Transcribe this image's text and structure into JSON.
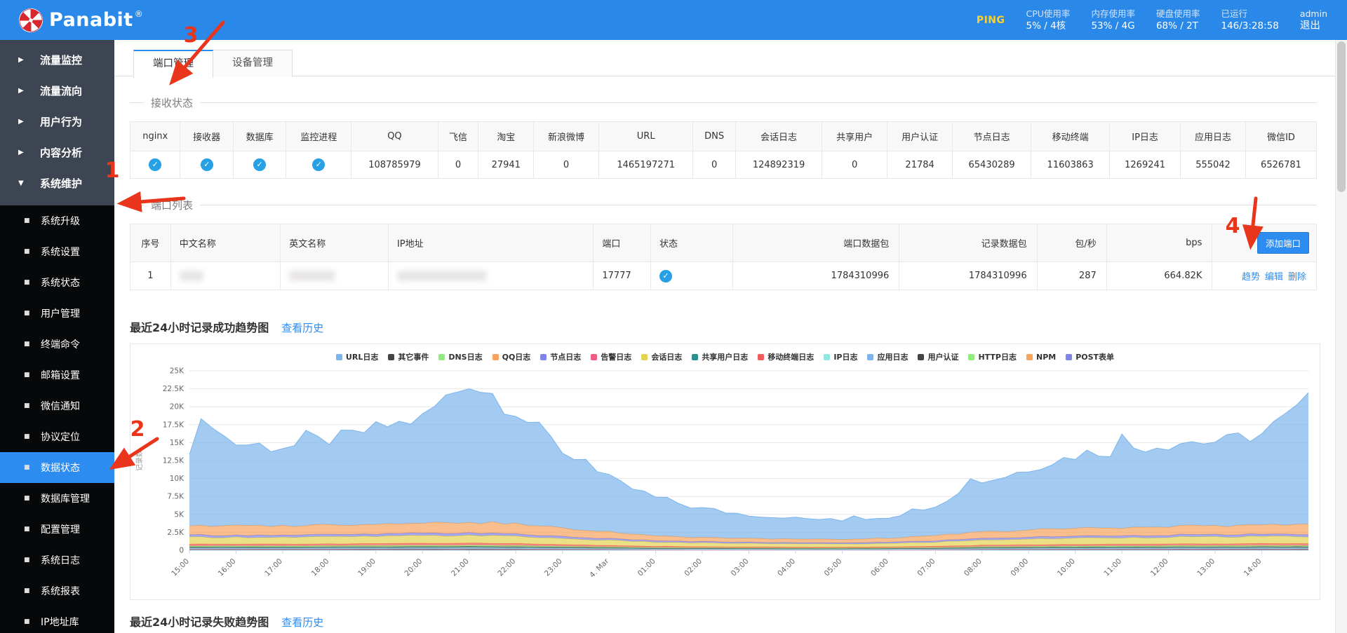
{
  "topbar": {
    "brand": "Panabit",
    "brand_reg": "®",
    "ping": "PING",
    "stats": [
      {
        "key": "cpu",
        "label": "CPU使用率",
        "value": "5% / 4核"
      },
      {
        "key": "memory",
        "label": "内存使用率",
        "value": "53% / 4G"
      },
      {
        "key": "disk",
        "label": "硬盘使用率",
        "value": "68% / 2T"
      },
      {
        "key": "uptime",
        "label": "已运行",
        "value": "146/3:28:58"
      }
    ],
    "user": "admin",
    "logout": "退出"
  },
  "sidebar": {
    "items": [
      {
        "key": "traffic-monitor",
        "label": "流量监控",
        "expanded": false
      },
      {
        "key": "traffic-flow",
        "label": "流量流向",
        "expanded": false
      },
      {
        "key": "user-behavior",
        "label": "用户行为",
        "expanded": false
      },
      {
        "key": "content-analysis",
        "label": "内容分析",
        "expanded": false
      },
      {
        "key": "system-maintenance",
        "label": "系统维护",
        "expanded": true
      }
    ],
    "submenu": [
      {
        "key": "system-upgrade",
        "label": "系统升级",
        "active": false
      },
      {
        "key": "system-settings",
        "label": "系统设置",
        "active": false
      },
      {
        "key": "system-status",
        "label": "系统状态",
        "active": false
      },
      {
        "key": "user-management",
        "label": "用户管理",
        "active": false
      },
      {
        "key": "terminal-command",
        "label": "终端命令",
        "active": false
      },
      {
        "key": "mail-settings",
        "label": "邮箱设置",
        "active": false
      },
      {
        "key": "wechat-notify",
        "label": "微信通知",
        "active": false
      },
      {
        "key": "protocol-location",
        "label": "协议定位",
        "active": false
      },
      {
        "key": "data-status",
        "label": "数据状态",
        "active": true
      },
      {
        "key": "database-management",
        "label": "数据库管理",
        "active": false
      },
      {
        "key": "config-management",
        "label": "配置管理",
        "active": false
      },
      {
        "key": "system-log",
        "label": "系统日志",
        "active": false
      },
      {
        "key": "system-report",
        "label": "系统报表",
        "active": false
      },
      {
        "key": "ip-library",
        "label": "IP地址库",
        "active": false
      }
    ]
  },
  "tabs": [
    {
      "key": "port-management",
      "label": "端口管理",
      "active": true
    },
    {
      "key": "device-management",
      "label": "设备管理",
      "active": false
    }
  ],
  "receive_status": {
    "section_title": "接收状态",
    "columns": [
      "nginx",
      "接收器",
      "数据库",
      "监控进程",
      "QQ",
      "飞信",
      "淘宝",
      "新浪微博",
      "URL",
      "DNS",
      "会话日志",
      "共享用户",
      "用户认证",
      "节点日志",
      "移动终端",
      "IP日志",
      "应用日志",
      "微信ID"
    ],
    "values": [
      "check",
      "check",
      "check",
      "check",
      "108785979",
      "0",
      "27941",
      "0",
      "1465197271",
      "0",
      "124892319",
      "0",
      "21784",
      "65430289",
      "11603863",
      "1269241",
      "555042",
      "6526781"
    ]
  },
  "port_list": {
    "section_title": "端口列表",
    "columns": [
      "序号",
      "中文名称",
      "英文名称",
      "IP地址",
      "端口",
      "状态",
      "端口数据包",
      "记录数据包",
      "包/秒",
      "bps"
    ],
    "add_button": "添加端口",
    "row": {
      "index": "1",
      "chinese_name_redacted": true,
      "english_name_redacted": true,
      "ip_redacted": true,
      "port": "17777",
      "status": "check",
      "port_packets": "1784310996",
      "recorded_packets": "1784310996",
      "pps": "287",
      "bps": "664.82K",
      "actions": [
        "趋势",
        "编辑",
        "删除"
      ]
    }
  },
  "chart_section": {
    "title": "最近24小时记录成功趋势图",
    "link": "查看历史"
  },
  "chart2_section": {
    "title": "最近24小时记录失败趋势图",
    "link": "查看历史"
  },
  "chart_data": {
    "type": "area",
    "stacked": true,
    "title": "最近24小时记录成功趋势图",
    "ylabel": "记录数",
    "ylim": [
      0,
      25000
    ],
    "y_ticks": [
      "0",
      "2.5K",
      "5K",
      "7.5K",
      "10K",
      "12.5K",
      "15K",
      "17.5K",
      "20K",
      "22.5K",
      "25K"
    ],
    "legend_position": "top",
    "grid": true,
    "x_labels": [
      "15:00",
      "16:00",
      "17:00",
      "18:00",
      "19:00",
      "20:00",
      "21:00",
      "22:00",
      "23:00",
      "4. Mar",
      "01:00",
      "02:00",
      "03:00",
      "04:00",
      "05:00",
      "06:00",
      "07:00",
      "08:00",
      "09:00",
      "10:00",
      "11:00",
      "12:00",
      "13:00",
      "14:00"
    ],
    "stack_order": [
      "POST表单",
      "NPM",
      "HTTP日志",
      "用户认证",
      "共享用户日志",
      "告警日志",
      "应用日志",
      "IP日志",
      "其它事件",
      "DNS日志",
      "移动终端日志",
      "会话日志",
      "节点日志",
      "QQ日志",
      "URL日志"
    ],
    "series": [
      {
        "name": "URL日志",
        "color": "#7cb5ec",
        "values": [
          10900,
          11400,
          11000,
          11800,
          13300,
          14600,
          19900,
          15800,
          10800,
          7300,
          5300,
          4000,
          3300,
          2900,
          2600,
          3000,
          4300,
          6900,
          8600,
          10200,
          11000,
          11600,
          11700,
          12600,
          17000
        ]
      },
      {
        "name": "其它事件",
        "color": "#434348",
        "values": [
          120,
          120,
          118,
          122,
          126,
          132,
          136,
          128,
          112,
          92,
          76,
          68,
          64,
          60,
          60,
          64,
          76,
          96,
          106,
          115,
          120,
          122,
          124,
          126,
          130
        ]
      },
      {
        "name": "DNS日志",
        "color": "#90ed7d",
        "values": [
          150,
          150,
          148,
          152,
          158,
          165,
          170,
          160,
          140,
          115,
          95,
          85,
          80,
          75,
          75,
          80,
          95,
          120,
          132,
          144,
          150,
          152,
          155,
          158,
          162
        ]
      },
      {
        "name": "QQ日志",
        "color": "#f7a35c",
        "values": [
          1300,
          1350,
          1300,
          1350,
          1400,
          1450,
          1500,
          1400,
          1200,
          900,
          700,
          600,
          550,
          500,
          500,
          550,
          700,
          900,
          1000,
          1100,
          1150,
          1200,
          1250,
          1300,
          1350
        ]
      },
      {
        "name": "节点日志",
        "color": "#8085e9",
        "values": [
          300,
          300,
          300,
          305,
          320,
          330,
          340,
          320,
          280,
          230,
          200,
          180,
          170,
          160,
          160,
          170,
          200,
          240,
          260,
          280,
          290,
          300,
          300,
          310,
          320
        ]
      },
      {
        "name": "告警日志",
        "color": "#f15c80",
        "values": [
          55,
          55,
          54,
          56,
          58,
          60,
          62,
          59,
          51,
          42,
          35,
          31,
          29,
          28,
          28,
          29,
          35,
          44,
          48,
          53,
          55,
          56,
          57,
          58,
          59
        ]
      },
      {
        "name": "会话日志",
        "color": "#e4d354",
        "values": [
          950,
          960,
          950,
          980,
          1000,
          1050,
          1100,
          1000,
          850,
          700,
          600,
          520,
          480,
          450,
          450,
          480,
          580,
          720,
          800,
          880,
          920,
          950,
          960,
          980,
          1000
        ]
      },
      {
        "name": "共享用户日志",
        "color": "#2b908f",
        "values": [
          40,
          40,
          39,
          41,
          42,
          44,
          45,
          43,
          37,
          31,
          25,
          23,
          21,
          20,
          20,
          21,
          25,
          32,
          35,
          38,
          40,
          41,
          41,
          42,
          43
        ]
      },
      {
        "name": "移动终端日志",
        "color": "#f45b5b",
        "values": [
          260,
          260,
          255,
          260,
          270,
          280,
          290,
          270,
          230,
          190,
          160,
          140,
          130,
          120,
          120,
          130,
          160,
          200,
          220,
          240,
          250,
          255,
          260,
          265,
          270
        ]
      },
      {
        "name": "IP日志",
        "color": "#91e8e1",
        "values": [
          90,
          90,
          88,
          92,
          95,
          99,
          102,
          96,
          84,
          69,
          57,
          51,
          48,
          45,
          45,
          48,
          57,
          72,
          79,
          86,
          90,
          92,
          93,
          95,
          97
        ]
      },
      {
        "name": "应用日志",
        "color": "#7cb5ec",
        "values": [
          70,
          70,
          69,
          71,
          74,
          77,
          79,
          75,
          65,
          54,
          44,
          40,
          37,
          35,
          35,
          37,
          44,
          56,
          62,
          67,
          70,
          71,
          72,
          74,
          76
        ]
      },
      {
        "name": "用户认证",
        "color": "#434348",
        "values": [
          30,
          30,
          30,
          31,
          32,
          33,
          34,
          32,
          28,
          23,
          19,
          17,
          16,
          15,
          15,
          16,
          19,
          24,
          26,
          29,
          30,
          31,
          31,
          32,
          32
        ]
      },
      {
        "name": "HTTP日志",
        "color": "#90ed7d",
        "values": [
          25,
          25,
          25,
          26,
          27,
          28,
          28,
          27,
          23,
          19,
          16,
          14,
          13,
          13,
          13,
          14,
          16,
          20,
          22,
          24,
          25,
          26,
          26,
          27,
          27
        ]
      },
      {
        "name": "NPM",
        "color": "#f7a35c",
        "values": [
          18,
          18,
          18,
          18,
          19,
          20,
          20,
          19,
          17,
          14,
          11,
          10,
          10,
          9,
          9,
          10,
          11,
          14,
          16,
          17,
          18,
          18,
          19,
          19,
          19
        ]
      },
      {
        "name": "POST表单",
        "color": "#8085e9",
        "values": [
          12,
          12,
          12,
          12,
          13,
          13,
          14,
          13,
          11,
          9,
          8,
          7,
          7,
          6,
          6,
          7,
          8,
          9,
          11,
          12,
          12,
          12,
          13,
          13,
          13
        ]
      }
    ]
  },
  "annotations": {
    "color": "#e8351c",
    "items": [
      {
        "label": "1",
        "num": [
          160,
          253
        ],
        "from": [
          262,
          283
        ],
        "to": [
          174,
          290
        ]
      },
      {
        "label": "2",
        "num": [
          196,
          622
        ],
        "from": [
          224,
          626
        ],
        "to": [
          162,
          666
        ]
      },
      {
        "label": "3",
        "num": [
          272,
          60
        ],
        "from": [
          318,
          32
        ],
        "to": [
          246,
          116
        ]
      },
      {
        "label": "4",
        "num": [
          1757,
          332
        ],
        "from": [
          1790,
          283
        ],
        "to": [
          1783,
          349
        ]
      }
    ]
  },
  "colors": {
    "accent": "#2d8cf0",
    "topbar": "#2a88e8",
    "ping": "#ffd02e",
    "check_icon": "#27a0e5",
    "annotation": "#e8351c",
    "sidebar_group": "#3e4552",
    "sidebar_sub": "#070809"
  }
}
